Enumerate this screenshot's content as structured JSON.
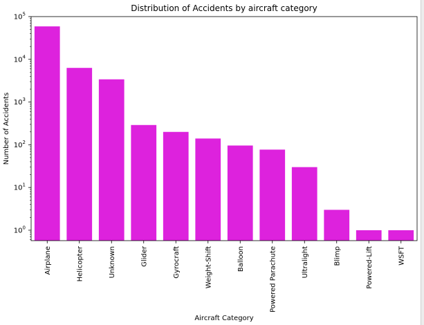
{
  "chart_data": {
    "type": "bar",
    "title": "Distribution of Accidents by aircraft category",
    "xlabel": "Aircraft Category",
    "ylabel": "Number of Accidents",
    "y_scale": "log",
    "ylim": [
      0.57,
      100000
    ],
    "grid": false,
    "bar_color": "#dd22dd",
    "categories": [
      "Airplane",
      "Helicopter",
      "Unknown",
      "Glider",
      "Gyrocraft",
      "Weight-Shift",
      "Balloon",
      "Powered Parachute",
      "Ultralight",
      "Blimp",
      "Powered-Lift",
      "WSFT"
    ],
    "values": [
      59000,
      6300,
      3400,
      290,
      200,
      140,
      96,
      77,
      30,
      3,
      1,
      1
    ],
    "y_ticks": [
      {
        "value": 1,
        "base": "10",
        "exp": "0"
      },
      {
        "value": 10,
        "base": "10",
        "exp": "1"
      },
      {
        "value": 100,
        "base": "10",
        "exp": "2"
      },
      {
        "value": 1000,
        "base": "10",
        "exp": "3"
      },
      {
        "value": 10000,
        "base": "10",
        "exp": "4"
      },
      {
        "value": 100000,
        "base": "10",
        "exp": "5"
      }
    ]
  }
}
